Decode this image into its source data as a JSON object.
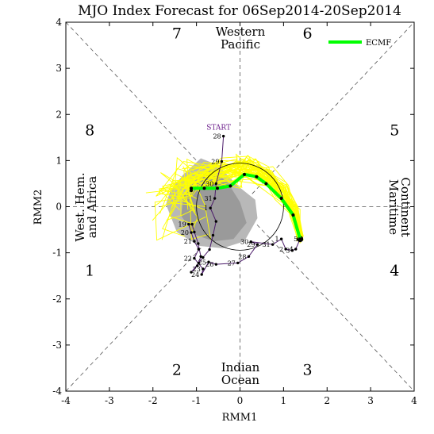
{
  "chart_data": {
    "type": "scatter",
    "title": "MJO Index Forecast for 06Sep2014-20Sep2014",
    "xlabel": "RMM1",
    "ylabel": "RMM2",
    "xlim": [
      -4,
      4
    ],
    "ylim": [
      -4,
      4
    ],
    "xticks": [
      "-4",
      "-3",
      "-2",
      "-1",
      "0",
      "1",
      "2",
      "3",
      "4"
    ],
    "yticks": [
      "-4",
      "-3",
      "-2",
      "-1",
      "0",
      "1",
      "2",
      "3",
      "4"
    ],
    "grid": false,
    "unit_circle_radius": 1,
    "phase_numbers": [
      {
        "label": "1",
        "x": -3.45,
        "y": -1.5
      },
      {
        "label": "2",
        "x": -1.45,
        "y": -3.65
      },
      {
        "label": "3",
        "x": 1.55,
        "y": -3.65
      },
      {
        "label": "4",
        "x": 3.55,
        "y": -1.5
      },
      {
        "label": "5",
        "x": 3.55,
        "y": 1.55
      },
      {
        "label": "6",
        "x": 1.55,
        "y": 3.65
      },
      {
        "label": "7",
        "x": -1.45,
        "y": 3.65
      },
      {
        "label": "8",
        "x": -3.45,
        "y": 1.55
      }
    ],
    "region_labels": {
      "top": [
        "Western",
        "Pacific"
      ],
      "bottom": [
        "Indian",
        "Ocean"
      ],
      "left": [
        "West. Hem.",
        "and Africa"
      ],
      "right": [
        "Maritime",
        "Continent"
      ]
    },
    "legend": {
      "label": "ECMF",
      "color": "#00ff00",
      "position": "top-right"
    },
    "start_label": "START",
    "observed": [
      {
        "day": "28",
        "x": -0.38,
        "y": 1.53
      },
      {
        "day": "29",
        "x": -0.42,
        "y": 0.98
      },
      {
        "day": "30",
        "x": -0.55,
        "y": 0.5
      },
      {
        "day": "31",
        "x": -0.58,
        "y": 0.18
      },
      {
        "day": "1",
        "x": -0.68,
        "y": -0.03
      },
      {
        "day": "",
        "x": -0.55,
        "y": -0.32
      },
      {
        "day": "",
        "x": -0.62,
        "y": -0.62
      },
      {
        "day": "",
        "x": -0.7,
        "y": -0.93
      },
      {
        "day": "",
        "x": -0.85,
        "y": -1.1
      },
      {
        "day": "",
        "x": -0.95,
        "y": -1.22
      },
      {
        "day": "",
        "x": -1.12,
        "y": -1.42
      },
      {
        "day": "",
        "x": -0.98,
        "y": -1.28
      },
      {
        "day": "",
        "x": -0.9,
        "y": -1.08
      },
      {
        "day": "",
        "x": -0.96,
        "y": -0.8
      },
      {
        "day": "",
        "x": -1.05,
        "y": -0.55
      },
      {
        "day": "",
        "x": -1.1,
        "y": -0.38
      },
      {
        "day": "19",
        "x": -1.18,
        "y": -0.38
      },
      {
        "day": "20",
        "x": -1.12,
        "y": -0.56
      },
      {
        "day": "21",
        "x": -1.05,
        "y": -0.75
      },
      {
        "day": "",
        "x": -0.95,
        "y": -0.92
      },
      {
        "day": "22",
        "x": -1.05,
        "y": -1.12
      },
      {
        "day": "23",
        "x": -0.85,
        "y": -1.35
      },
      {
        "day": "24",
        "x": -0.88,
        "y": -1.47
      },
      {
        "day": "25",
        "x": -0.72,
        "y": -1.2
      },
      {
        "day": "26",
        "x": -0.55,
        "y": -1.25
      },
      {
        "day": "27",
        "x": -0.05,
        "y": -1.22
      },
      {
        "day": "28",
        "x": 0.2,
        "y": -1.08
      },
      {
        "day": "29",
        "x": 0.4,
        "y": -0.82
      },
      {
        "day": "30",
        "x": 0.25,
        "y": -0.76
      },
      {
        "day": "31",
        "x": 0.75,
        "y": -0.82
      },
      {
        "day": "1",
        "x": 0.95,
        "y": -0.7
      },
      {
        "day": "2",
        "x": 1.05,
        "y": -0.92
      },
      {
        "day": "3",
        "x": 1.2,
        "y": -0.95
      },
      {
        "day": "4",
        "x": 1.28,
        "y": -0.92
      },
      {
        "day": "5",
        "x": 1.38,
        "y": -0.7
      }
    ],
    "ensemble_mean": [
      {
        "x": 1.38,
        "y": -0.7
      },
      {
        "x": 1.22,
        "y": -0.18
      },
      {
        "x": 0.95,
        "y": 0.18
      },
      {
        "x": 0.6,
        "y": 0.5
      },
      {
        "x": 0.38,
        "y": 0.65
      },
      {
        "x": 0.1,
        "y": 0.7
      },
      {
        "x": -0.22,
        "y": 0.45
      },
      {
        "x": -0.52,
        "y": 0.4
      },
      {
        "x": -0.82,
        "y": 0.4
      },
      {
        "x": -1.12,
        "y": 0.4
      },
      {
        "x": -1.12,
        "y": 0.35
      }
    ]
  }
}
